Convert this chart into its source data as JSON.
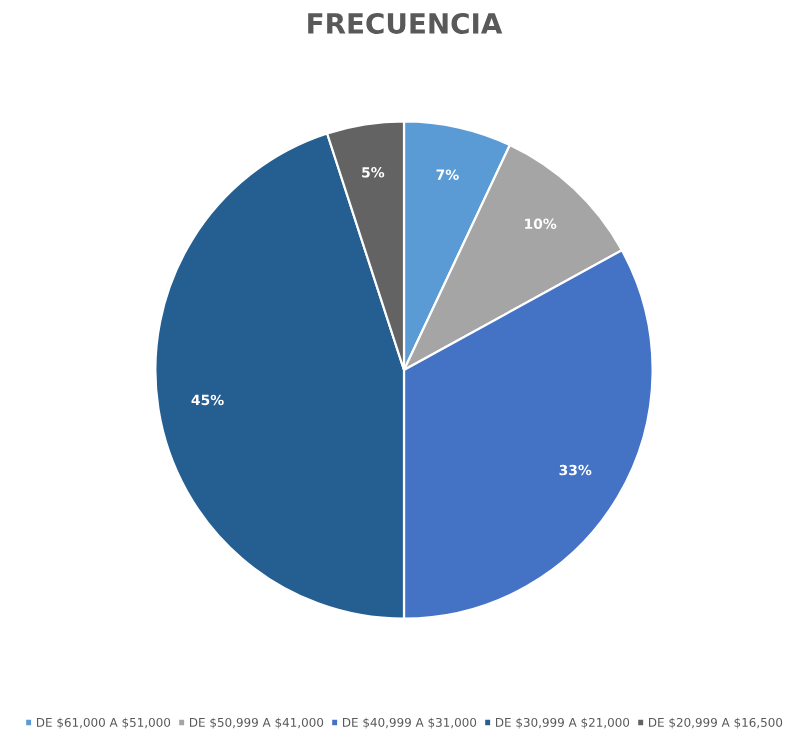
{
  "chart_data": {
    "type": "pie",
    "title": "FRECUENCIA",
    "categories": [
      "DE $61,000 A $51,000",
      "DE $50,999 A $41,000",
      "DE $40,999 A $31,000",
      "DE $30,999 A $21,000",
      "DE $20,999 A $16,500"
    ],
    "values": [
      7,
      10,
      33,
      45,
      5
    ],
    "colors": [
      "#5b9bd5",
      "#a5a5a5",
      "#4472c4",
      "#255e91",
      "#636363"
    ],
    "value_labels": [
      "7%",
      "10%",
      "33%",
      "45%",
      "5%"
    ],
    "legend": "bottom"
  }
}
